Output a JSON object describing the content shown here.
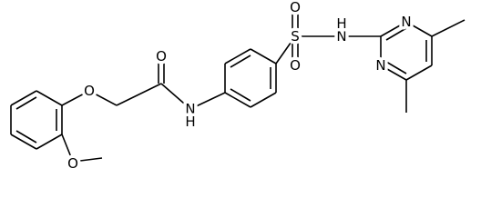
{
  "atoms": [
    {
      "label": "O"
    },
    {
      "label": "O"
    },
    {
      "label": "N"
    },
    {
      "label": "H"
    },
    {
      "label": "O"
    },
    {
      "label": "S"
    },
    {
      "label": "O"
    },
    {
      "label": "O"
    },
    {
      "label": "N"
    },
    {
      "label": "H"
    },
    {
      "label": "N"
    },
    {
      "label": "N"
    }
  ]
}
